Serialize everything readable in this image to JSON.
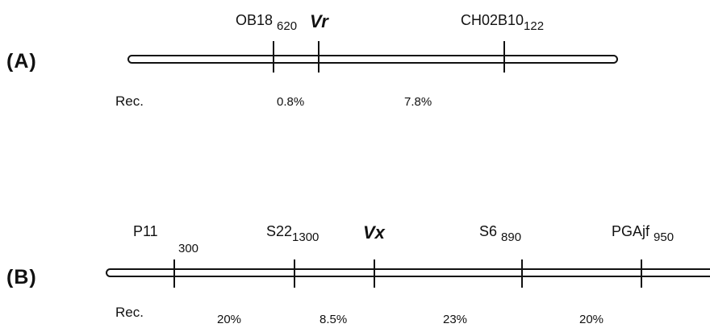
{
  "panel_a": {
    "label": "(A)",
    "markers": [
      {
        "name": "OB18",
        "sub": "620"
      },
      {
        "gene": "Vr"
      },
      {
        "name": "CH02B10",
        "sub": "122"
      }
    ],
    "rec_label": "Rec.",
    "rec_values": [
      "0.8%",
      "7.8%"
    ]
  },
  "panel_b": {
    "label": "(B)",
    "markers": [
      {
        "name": "P11",
        "sub": "300"
      },
      {
        "name": "S22",
        "sub": "1300"
      },
      {
        "gene": "Vx"
      },
      {
        "name": "S6",
        "sub": "890"
      },
      {
        "name": "PGAjf",
        "sub": "950"
      }
    ],
    "rec_label": "Rec.",
    "rec_values": [
      "20%",
      "8.5%",
      "23%",
      "20%"
    ]
  }
}
